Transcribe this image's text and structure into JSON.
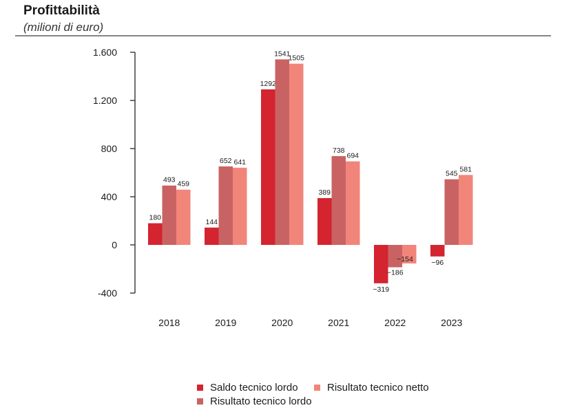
{
  "header": {
    "title": "Profittabilità",
    "subtitle": "(milioni di euro)"
  },
  "chart_data": {
    "type": "bar",
    "title": "Profittabilità",
    "subtitle": "(milioni di euro)",
    "categories": [
      "2018",
      "2019",
      "2020",
      "2021",
      "2022",
      "2023"
    ],
    "series": [
      {
        "name": "Saldo tecnico lordo",
        "color": "#d42430",
        "values": [
          180,
          144,
          1292,
          389,
          -319,
          -96
        ],
        "labels": [
          "180",
          "144",
          "1292",
          "389",
          "−319",
          "−96"
        ]
      },
      {
        "name": "Risultato tecnico lordo",
        "color": "#c96363",
        "values": [
          493,
          652,
          1541,
          738,
          -186,
          545
        ],
        "labels": [
          "493",
          "652",
          "1541",
          "738",
          "−186",
          "545"
        ]
      },
      {
        "name": "Risultato tecnico netto",
        "color": "#f2857a",
        "values": [
          459,
          641,
          1505,
          694,
          -154,
          581
        ],
        "labels": [
          "459",
          "641",
          "1505",
          "694",
          "−154",
          "581"
        ]
      }
    ],
    "ylim": [
      -400,
      1600
    ],
    "yticks": [
      -400,
      0,
      400,
      800,
      1200,
      1600
    ],
    "ytick_labels": [
      "-400",
      "0",
      "400",
      "800",
      "1.200",
      "1.600"
    ],
    "grid": false,
    "legend_position": "bottom"
  }
}
